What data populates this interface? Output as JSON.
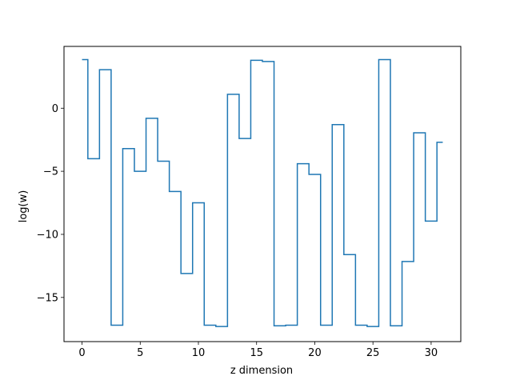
{
  "chart_data": {
    "type": "line",
    "drawstyle": "steps-mid",
    "title": "",
    "xlabel": "z dimension",
    "ylabel": "log(w)",
    "xlim": [
      -1.55,
      32.55
    ],
    "ylim": [
      -18.5,
      4.9
    ],
    "xticks": [
      0,
      5,
      10,
      15,
      20,
      25,
      30
    ],
    "yticks": [
      0,
      -5,
      -10,
      -15
    ],
    "xtick_labels": [
      "0",
      "5",
      "10",
      "15",
      "20",
      "25",
      "30"
    ],
    "ytick_labels": [
      "0",
      "−5",
      "−10",
      "−15"
    ],
    "grid": false,
    "line_color": "#1f77b4",
    "series": [
      {
        "x": [
          0,
          1,
          2,
          3,
          4,
          5,
          6,
          7,
          8,
          9,
          10,
          11,
          12,
          13,
          14,
          15,
          16,
          17,
          18,
          19,
          20,
          21,
          22,
          23,
          24,
          25,
          26,
          27,
          28,
          29,
          30,
          31
        ],
        "values": [
          3.85,
          -4.0,
          3.05,
          -17.2,
          -3.2,
          -5.0,
          -0.8,
          -4.2,
          -6.6,
          -13.1,
          -7.5,
          -17.2,
          -17.3,
          1.1,
          -2.4,
          3.8,
          3.7,
          -17.25,
          -17.2,
          -4.4,
          -5.25,
          -17.2,
          -1.3,
          -11.6,
          -17.2,
          -17.3,
          3.85,
          -17.25,
          -12.15,
          -1.95,
          -8.95,
          -2.7
        ]
      }
    ]
  }
}
